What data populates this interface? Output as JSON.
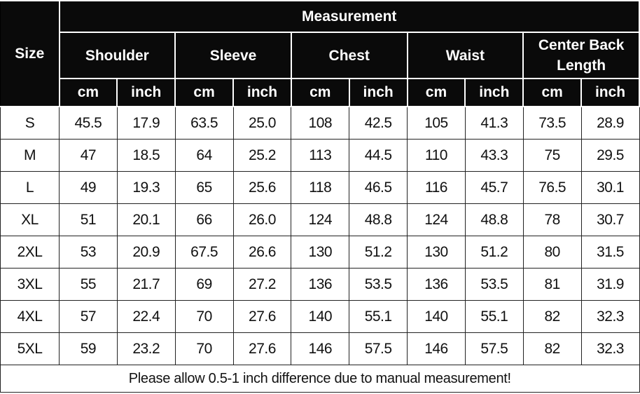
{
  "header": {
    "size_label": "Size",
    "measurement_label": "Measurement",
    "groups": [
      "Shoulder",
      "Sleeve",
      "Chest",
      "Waist",
      "Center Back Length"
    ],
    "units": [
      "cm",
      "inch"
    ]
  },
  "rows": [
    {
      "size": "S",
      "values": [
        "45.5",
        "17.9",
        "63.5",
        "25.0",
        "108",
        "42.5",
        "105",
        "41.3",
        "73.5",
        "28.9"
      ]
    },
    {
      "size": "M",
      "values": [
        "47",
        "18.5",
        "64",
        "25.2",
        "113",
        "44.5",
        "110",
        "43.3",
        "75",
        "29.5"
      ]
    },
    {
      "size": "L",
      "values": [
        "49",
        "19.3",
        "65",
        "25.6",
        "118",
        "46.5",
        "116",
        "45.7",
        "76.5",
        "30.1"
      ]
    },
    {
      "size": "XL",
      "values": [
        "51",
        "20.1",
        "66",
        "26.0",
        "124",
        "48.8",
        "124",
        "48.8",
        "78",
        "30.7"
      ]
    },
    {
      "size": "2XL",
      "values": [
        "53",
        "20.9",
        "67.5",
        "26.6",
        "130",
        "51.2",
        "130",
        "51.2",
        "80",
        "31.5"
      ]
    },
    {
      "size": "3XL",
      "values": [
        "55",
        "21.7",
        "69",
        "27.2",
        "136",
        "53.5",
        "136",
        "53.5",
        "81",
        "31.9"
      ]
    },
    {
      "size": "4XL",
      "values": [
        "57",
        "22.4",
        "70",
        "27.6",
        "140",
        "55.1",
        "140",
        "55.1",
        "82",
        "32.3"
      ]
    },
    {
      "size": "5XL",
      "values": [
        "59",
        "23.2",
        "70",
        "27.6",
        "146",
        "57.5",
        "146",
        "57.5",
        "82",
        "32.3"
      ]
    }
  ],
  "footer_note": "Please allow 0.5-1 inch difference due to manual measurement!"
}
